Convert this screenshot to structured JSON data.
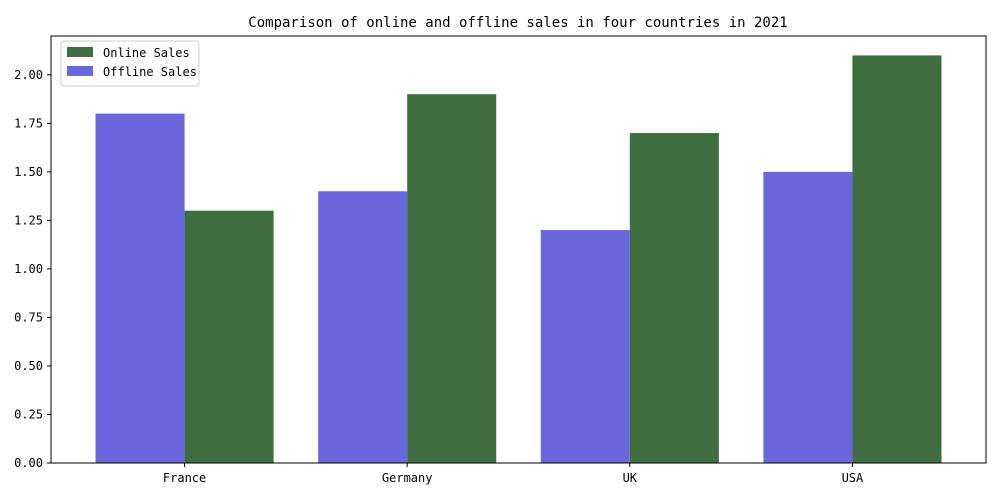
{
  "chart_data": {
    "type": "bar",
    "title": "Comparison of online and offline sales in four countries in 2021",
    "xlabel": "",
    "ylabel": "",
    "categories": [
      "France",
      "Germany",
      "UK",
      "USA"
    ],
    "ylim": [
      0,
      2.2
    ],
    "yticks": [
      "0.00",
      "0.25",
      "0.50",
      "0.75",
      "1.00",
      "1.25",
      "1.50",
      "1.75",
      "2.00"
    ],
    "grid": false,
    "legend_position": "top-left",
    "series": [
      {
        "name": "Offline Sales",
        "color": "#6a67dc",
        "values": [
          1.8,
          1.4,
          1.2,
          1.5
        ]
      },
      {
        "name": "Online Sales",
        "color": "#3f6e40",
        "values": [
          1.3,
          1.9,
          1.7,
          2.1
        ]
      }
    ],
    "legend_order": [
      "Online Sales",
      "Offline Sales"
    ]
  }
}
